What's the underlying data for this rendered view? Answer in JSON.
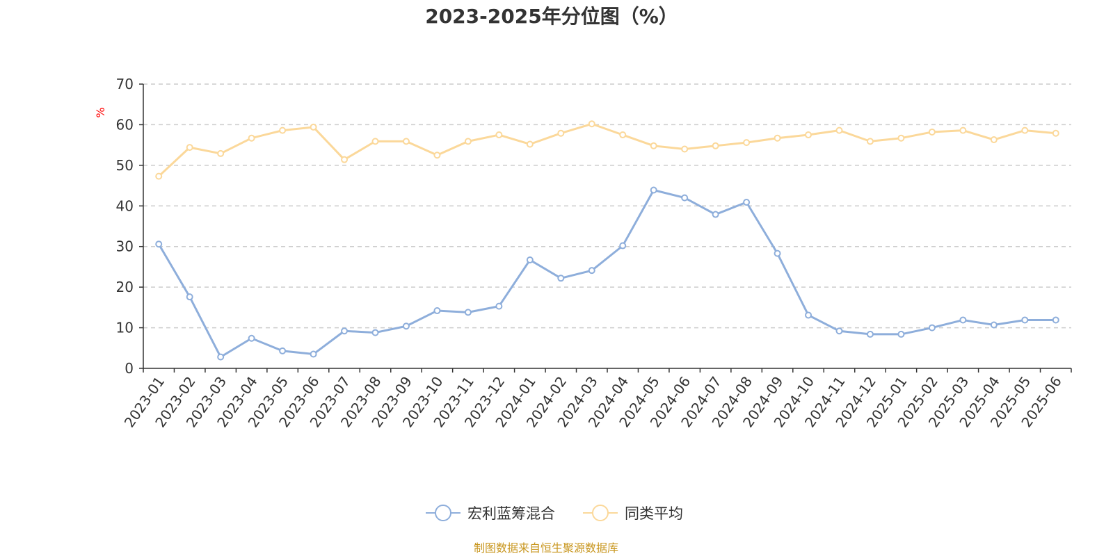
{
  "chart_data": {
    "type": "line",
    "title": "2023-2025年分位图（%）",
    "ylabel": "%",
    "xlabel": "",
    "ylim": [
      0,
      70
    ],
    "yticks": [
      0,
      10,
      20,
      30,
      40,
      50,
      60,
      70
    ],
    "grid": true,
    "legend_position": "bottom-center",
    "categories": [
      "2023-01",
      "2023-02",
      "2023-03",
      "2023-04",
      "2023-05",
      "2023-06",
      "2023-07",
      "2023-08",
      "2023-09",
      "2023-10",
      "2023-11",
      "2023-12",
      "2024-01",
      "2024-02",
      "2024-03",
      "2024-04",
      "2024-05",
      "2024-06",
      "2024-07",
      "2024-08",
      "2024-09",
      "2024-10",
      "2024-11",
      "2024-12",
      "2025-01",
      "2025-02",
      "2025-03",
      "2025-04",
      "2025-05",
      "2025-06"
    ],
    "series": [
      {
        "name": "宏利蓝筹混合",
        "color": "#8eaedb",
        "values": [
          30.6,
          17.6,
          2.8,
          7.4,
          4.3,
          3.5,
          9.2,
          8.8,
          10.4,
          14.2,
          13.8,
          15.3,
          26.7,
          22.2,
          24.1,
          30.2,
          43.9,
          42.0,
          37.9,
          40.9,
          28.3,
          13.1,
          9.2,
          8.4,
          8.4,
          10.0,
          11.9,
          10.7,
          11.9,
          11.9
        ]
      },
      {
        "name": "同类平均",
        "color": "#fbd89a",
        "values": [
          47.3,
          54.4,
          52.9,
          56.7,
          58.6,
          59.4,
          51.4,
          55.9,
          55.9,
          52.5,
          55.9,
          57.5,
          55.2,
          57.9,
          60.2,
          57.5,
          54.8,
          54.0,
          54.8,
          55.6,
          56.7,
          57.5,
          58.6,
          55.9,
          56.7,
          58.2,
          58.6,
          56.3,
          58.6,
          57.9
        ]
      }
    ]
  },
  "source_text": "制图数据来自恒生聚源数据库"
}
